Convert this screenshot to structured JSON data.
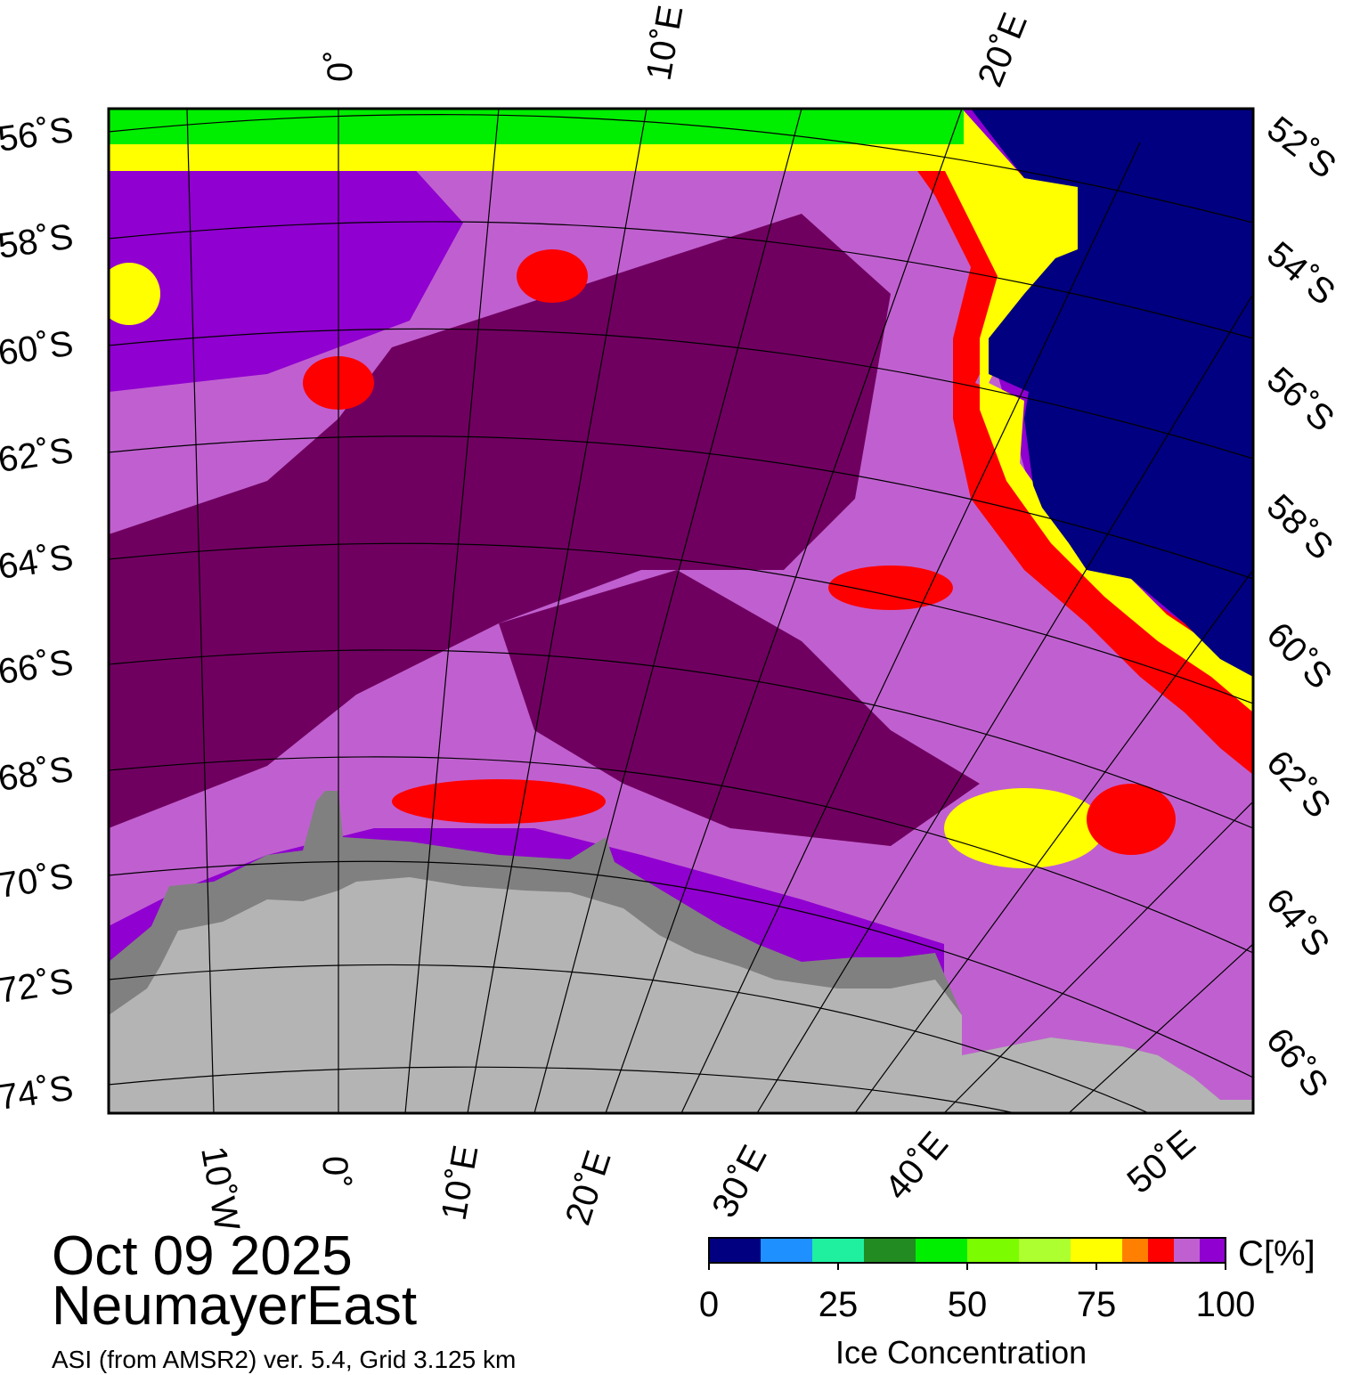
{
  "date": "Oct 09 2025",
  "region": "NeumayerEast",
  "source": "ASI (from AMSR2) ver. 5.4,  Grid 3.125 km",
  "legend": {
    "title": "Ice Concentration",
    "unit": "C[%]",
    "ticks": [
      "0",
      "25",
      "50",
      "75",
      "100"
    ],
    "colors": [
      "#000080",
      "#1e90ff",
      "#1ef0a0",
      "#228b22",
      "#00ee00",
      "#7cfc00",
      "#adff2f",
      "#ffff00",
      "#ff8000",
      "#ff0000",
      "#c060d0",
      "#9000d0"
    ]
  },
  "palette": {
    "open_water": "#000080",
    "ice_full": "#700060",
    "ice_high": "#9000d0",
    "ice_mid": "#c060d0",
    "ice_red": "#ff0000",
    "ice_yellow": "#ffff00",
    "ice_green": "#00ee00",
    "land": "#b4b4b4",
    "ice_shelf": "#808080"
  },
  "graticule": {
    "top_lon": [
      "0˚",
      "10˚E",
      "20˚E"
    ],
    "bottom_lon": [
      "10˚W",
      "0˚",
      "10˚E",
      "20˚E",
      "30˚E",
      "40˚E",
      "50˚E"
    ],
    "left_lat": [
      "56˚S",
      "58˚S",
      "60˚S",
      "62˚S",
      "64˚S",
      "66˚S",
      "68˚S",
      "70˚S",
      "72˚S",
      "74˚S"
    ],
    "right_lat": [
      "52˚S",
      "54˚S",
      "56˚S",
      "58˚S",
      "60˚S",
      "62˚S",
      "64˚S",
      "66˚S"
    ]
  }
}
